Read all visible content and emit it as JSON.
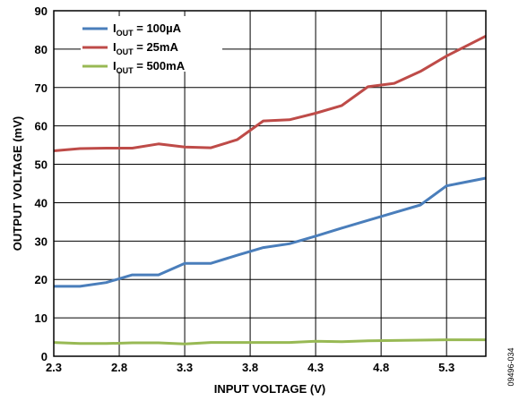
{
  "chart_data": {
    "type": "line",
    "title": "",
    "xlabel": "INPUT VOLTAGE (V)",
    "ylabel": "OUTPUT VOLTAGE (mV)",
    "xlim": [
      2.3,
      5.6
    ],
    "ylim": [
      0,
      90
    ],
    "x_ticks": [
      2.3,
      2.8,
      3.3,
      3.8,
      4.3,
      4.8,
      5.3
    ],
    "x_tick_labels": [
      "2.3",
      "2.8",
      "3.3",
      "3.8",
      "4.3",
      "4.8",
      "5.3"
    ],
    "y_ticks": [
      0,
      10,
      20,
      30,
      40,
      50,
      60,
      70,
      80,
      90
    ],
    "y_tick_labels": [
      "0",
      "10",
      "20",
      "30",
      "40",
      "50",
      "60",
      "70",
      "80",
      "90"
    ],
    "grid": true,
    "legend_position": "top-left",
    "series": [
      {
        "name_main": "I",
        "name_sub": "OUT",
        "name_value": " = 100µA",
        "color": "#4a7ebb",
        "x": [
          2.3,
          2.5,
          2.7,
          2.9,
          3.1,
          3.3,
          3.5,
          3.7,
          3.9,
          4.1,
          4.3,
          4.5,
          4.7,
          4.9,
          5.1,
          5.3,
          5.6
        ],
        "values": [
          18.2,
          18.2,
          19.2,
          21.2,
          21.2,
          24.2,
          24.2,
          26.3,
          28.3,
          29.3,
          31.3,
          33.4,
          35.4,
          37.4,
          39.4,
          44.4,
          46.4
        ]
      },
      {
        "name_main": "I",
        "name_sub": "OUT",
        "name_value": " = 25mA",
        "color": "#be4b48",
        "x": [
          2.3,
          2.5,
          2.7,
          2.9,
          3.1,
          3.3,
          3.5,
          3.7,
          3.9,
          4.1,
          4.3,
          4.5,
          4.7,
          4.9,
          5.1,
          5.3,
          5.6
        ],
        "values": [
          53.5,
          54.1,
          54.2,
          54.2,
          55.3,
          54.5,
          54.3,
          56.4,
          61.3,
          61.6,
          63.3,
          65.3,
          70.2,
          71.1,
          74.2,
          78.2,
          83.4
        ]
      },
      {
        "name_main": "I",
        "name_sub": "OUT",
        "name_value": " = 500mA",
        "color": "#98b954",
        "x": [
          2.3,
          2.5,
          2.7,
          2.9,
          3.1,
          3.3,
          3.5,
          3.7,
          3.9,
          4.1,
          4.3,
          4.5,
          4.7,
          4.9,
          5.1,
          5.3,
          5.6
        ],
        "values": [
          3.6,
          3.3,
          3.3,
          3.5,
          3.5,
          3.2,
          3.6,
          3.6,
          3.6,
          3.6,
          3.9,
          3.8,
          4.0,
          4.1,
          4.2,
          4.3,
          4.3
        ]
      }
    ],
    "figure_id": "09496-034"
  }
}
